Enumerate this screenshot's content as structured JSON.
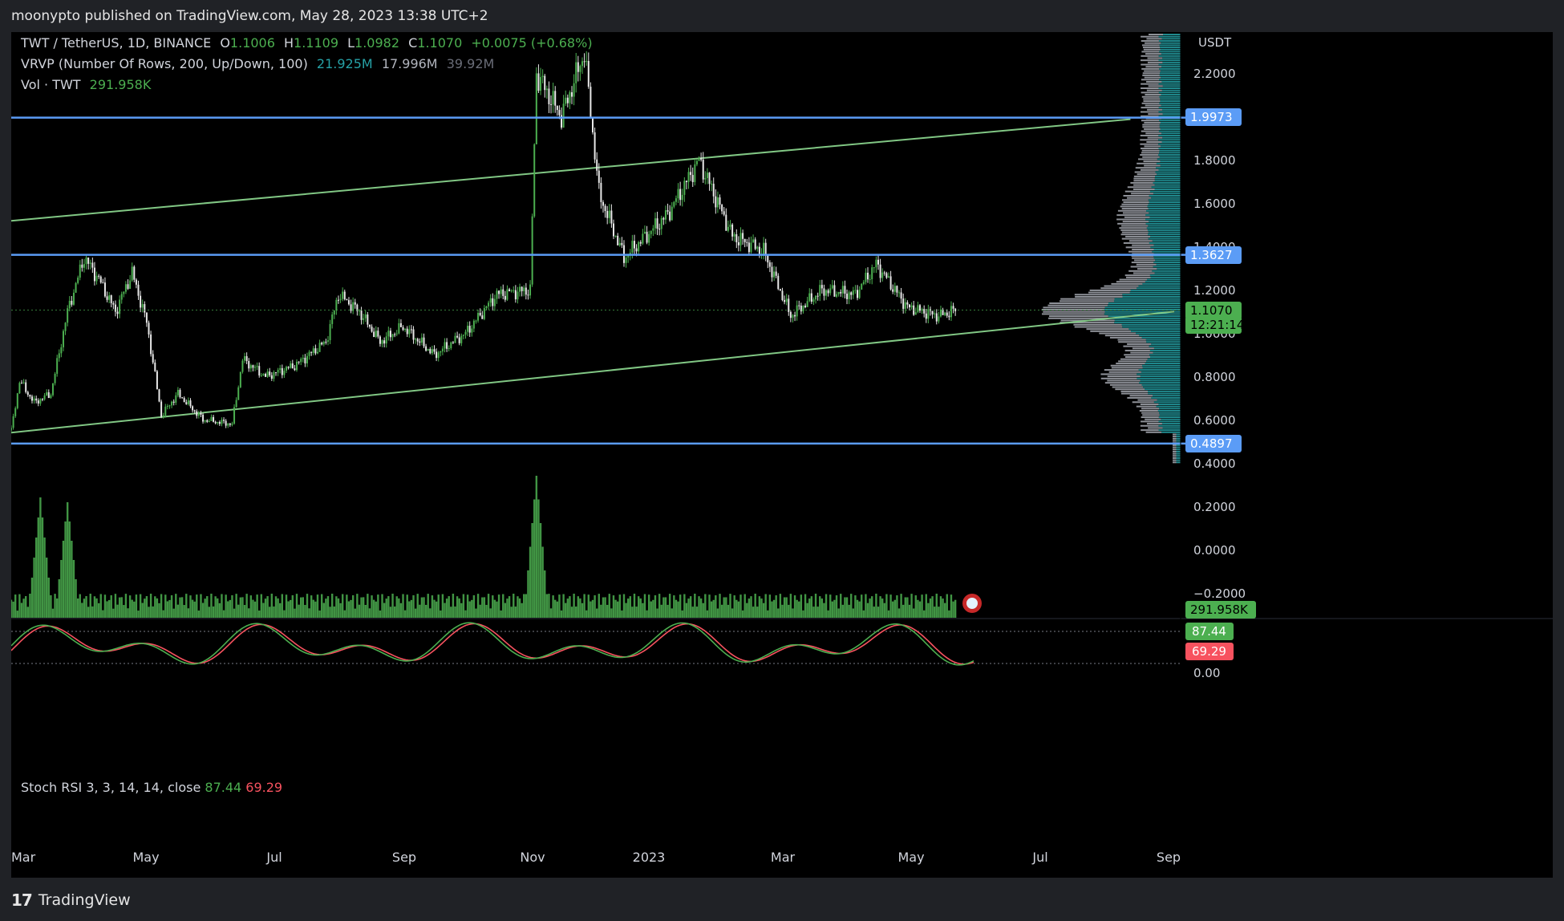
{
  "header": "moonypto published on TradingView.com, May 28, 2023 13:38 UTC+2",
  "footer": {
    "brand": "TradingView",
    "logo_icon": "tv-logo-icon"
  },
  "legend": {
    "symbol": "TWT / TetherUS, 1D, BINANCE",
    "o_label": "O",
    "o_value": "1.1006",
    "h_label": "H",
    "h_value": "1.1109",
    "l_label": "L",
    "l_value": "1.0982",
    "c_label": "C",
    "c_value": "1.1070",
    "change": "+0.0075 (+0.68%)",
    "vrvp_label": "VRVP (Number Of Rows, 200, Up/Down, 100)",
    "vrvp_up": "21.925M",
    "vrvp_down": "17.996M",
    "vrvp_total": "39.92M",
    "vol_label": "Vol · TWT",
    "vol_value": "291.958K"
  },
  "price_scale": {
    "currency": "USDT",
    "ticks": [
      "2.2000",
      "1.8000",
      "1.6000",
      "1.4000",
      "1.2000",
      "1.0000",
      "0.8000",
      "0.6000",
      "0.4000",
      "0.2000",
      "0.0000",
      "−0.2000"
    ],
    "labels": [
      {
        "text": "1.9973",
        "color": "#5b9cf6"
      },
      {
        "text": "1.3627",
        "color": "#5b9cf6"
      },
      {
        "text": "1.1070",
        "color": "#4caf50"
      },
      {
        "text": "12:21:14",
        "color": "#4caf50"
      },
      {
        "text": "0.4897",
        "color": "#5b9cf6"
      },
      {
        "text": "291.958K",
        "color": "#4caf50"
      }
    ]
  },
  "stoch": {
    "label": "Stoch RSI 3, 3, 14, 14, close",
    "k_value": "87.44",
    "d_value": "69.29",
    "k_color": "#4caf50",
    "d_color": "#f7525f",
    "scale_zero": "0.00"
  },
  "time_axis": [
    "Mar",
    "May",
    "Jul",
    "Sep",
    "Nov",
    "2023",
    "Mar",
    "May",
    "Jul",
    "Sep"
  ],
  "colors": {
    "up": "#26a69a",
    "green": "#4caf50",
    "level": "#5b9cf6",
    "trend": "#81c784",
    "vrvp_up": "#26a1a6",
    "vrvp_down": "#b2b5be"
  },
  "chart_data": {
    "type": "candlestick",
    "symbol": "TWT/USDT",
    "interval": "1D",
    "ylim": [
      0.4,
      2.45
    ],
    "horizontal_levels": [
      1.9973,
      1.3627,
      0.4897
    ],
    "last_price": 1.107,
    "trend_lines": [
      {
        "from": [
          "2022-03-01",
          1.52
        ],
        "to": [
          "2023-08-20",
          1.99
        ]
      },
      {
        "from": [
          "2022-03-01",
          0.54
        ],
        "to": [
          "2023-09-10",
          1.1
        ]
      }
    ],
    "close_path": [
      {
        "x": "2022-03-01",
        "y": 0.55
      },
      {
        "x": "2022-03-05",
        "y": 0.78
      },
      {
        "x": "2022-03-12",
        "y": 0.68
      },
      {
        "x": "2022-03-20",
        "y": 0.72
      },
      {
        "x": "2022-03-28",
        "y": 1.1
      },
      {
        "x": "2022-04-05",
        "y": 1.35
      },
      {
        "x": "2022-04-12",
        "y": 1.25
      },
      {
        "x": "2022-04-20",
        "y": 1.1
      },
      {
        "x": "2022-04-28",
        "y": 1.28
      },
      {
        "x": "2022-05-05",
        "y": 1.05
      },
      {
        "x": "2022-05-12",
        "y": 0.62
      },
      {
        "x": "2022-05-20",
        "y": 0.72
      },
      {
        "x": "2022-06-01",
        "y": 0.6
      },
      {
        "x": "2022-06-15",
        "y": 0.58
      },
      {
        "x": "2022-06-20",
        "y": 0.88
      },
      {
        "x": "2022-07-01",
        "y": 0.8
      },
      {
        "x": "2022-07-15",
        "y": 0.85
      },
      {
        "x": "2022-07-30",
        "y": 0.96
      },
      {
        "x": "2022-08-05",
        "y": 1.18
      },
      {
        "x": "2022-08-15",
        "y": 1.1
      },
      {
        "x": "2022-08-25",
        "y": 0.96
      },
      {
        "x": "2022-09-05",
        "y": 1.03
      },
      {
        "x": "2022-09-20",
        "y": 0.9
      },
      {
        "x": "2022-10-05",
        "y": 1.0
      },
      {
        "x": "2022-10-20",
        "y": 1.18
      },
      {
        "x": "2022-11-05",
        "y": 1.2
      },
      {
        "x": "2022-11-08",
        "y": 2.2
      },
      {
        "x": "2022-11-20",
        "y": 2.0
      },
      {
        "x": "2022-12-01",
        "y": 2.3
      },
      {
        "x": "2022-12-08",
        "y": 1.65
      },
      {
        "x": "2022-12-20",
        "y": 1.35
      },
      {
        "x": "2023-01-10",
        "y": 1.55
      },
      {
        "x": "2023-01-25",
        "y": 1.8
      },
      {
        "x": "2023-02-10",
        "y": 1.45
      },
      {
        "x": "2023-02-25",
        "y": 1.38
      },
      {
        "x": "2023-03-10",
        "y": 1.08
      },
      {
        "x": "2023-03-25",
        "y": 1.2
      },
      {
        "x": "2023-04-10",
        "y": 1.18
      },
      {
        "x": "2023-04-20",
        "y": 1.32
      },
      {
        "x": "2023-05-05",
        "y": 1.12
      },
      {
        "x": "2023-05-20",
        "y": 1.08
      },
      {
        "x": "2023-05-28",
        "y": 1.107
      }
    ],
    "volume_spikes": [
      {
        "x": "2022-03-15",
        "value": 1.0
      },
      {
        "x": "2022-03-28",
        "value": 0.96
      },
      {
        "x": "2022-11-08",
        "value": 1.18
      }
    ],
    "stoch_rsi": {
      "k": 87.44,
      "d": 69.29
    }
  }
}
